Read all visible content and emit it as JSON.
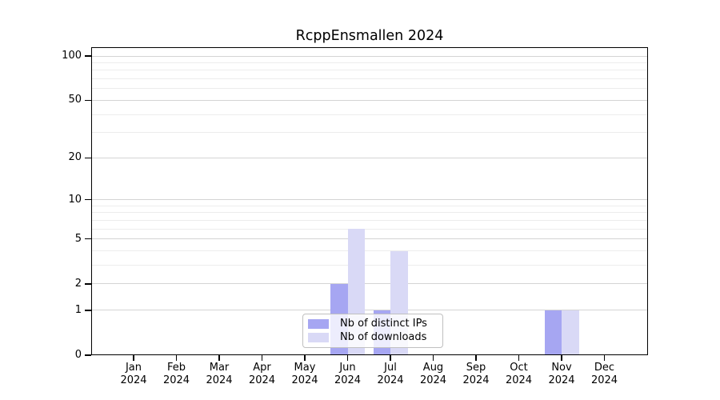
{
  "chart_data": {
    "type": "bar",
    "title": "RcppEnsmallen 2024",
    "year_label": "2024",
    "categories": [
      "Jan",
      "Feb",
      "Mar",
      "Apr",
      "May",
      "Jun",
      "Jul",
      "Aug",
      "Sep",
      "Oct",
      "Nov",
      "Dec"
    ],
    "series": [
      {
        "name": "Nb of distinct IPs",
        "color": "#a6a6f2",
        "values": [
          0,
          0,
          0,
          0,
          0,
          2,
          1,
          0,
          0,
          0,
          1,
          0
        ]
      },
      {
        "name": "Nb of downloads",
        "color": "#d9d9f6",
        "values": [
          0,
          0,
          0,
          0,
          0,
          6,
          4,
          0,
          0,
          0,
          1,
          0
        ]
      }
    ],
    "yscale": "log1p",
    "ylim": [
      0,
      100
    ],
    "yticks": [
      0,
      1,
      2,
      5,
      10,
      20,
      50,
      100
    ],
    "gridlines": {
      "major": [
        1,
        2,
        5,
        10,
        20,
        50,
        100
      ],
      "minor": [
        3,
        4,
        6,
        7,
        8,
        9,
        30,
        40,
        60,
        70,
        80,
        90
      ]
    },
    "legend_position": "bottom-center",
    "colors": {
      "axis": "#000000",
      "grid_major": "#d4d4d4",
      "grid_minor": "#ececec",
      "legend_border": "#c0c0c0",
      "background": "#ffffff",
      "text": "#000000"
    }
  }
}
